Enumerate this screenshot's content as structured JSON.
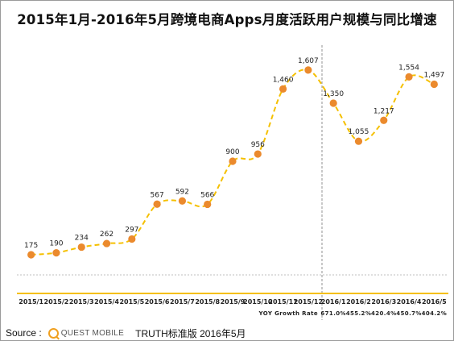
{
  "title": "2015年1月-2016年5月跨境电商Apps月度活跃用户规模与同比增速",
  "chart_data": {
    "type": "line",
    "title": "2015年1月-2016年5月跨境电商Apps月度活跃用户规模与同比增速",
    "categories": [
      "2015/1",
      "2015/2",
      "2015/3",
      "2015/4",
      "2015/5",
      "2015/6",
      "2015/7",
      "2015/8",
      "2015/9",
      "2015/10",
      "2015/11",
      "2015/12",
      "2016/1",
      "2016/2",
      "2016/3",
      "2016/4",
      "2016/5"
    ],
    "series": [
      {
        "values": [
          175,
          190,
          234,
          262,
          297,
          567,
          592,
          566,
          900,
          956,
          1460,
          1607,
          1350,
          1055,
          1217,
          1554,
          1497
        ],
        "labels": [
          "175",
          "190",
          "234",
          "262",
          "297",
          "567",
          "592",
          "566",
          "900",
          "956",
          "1,460",
          "1,607",
          "1,350",
          "1,055",
          "1,217",
          "1,554",
          "1,497"
        ]
      }
    ],
    "yoy": {
      "label": "YOY Growth Rate",
      "values": [
        "671.0%",
        "455.2%",
        "420.4%",
        "450.7%",
        "404.2%"
      ]
    },
    "line_color": "#f5c000",
    "marker_color": "#eb8a2d",
    "axis_color": "#f5c000",
    "grid": false,
    "legend": "none"
  },
  "source": {
    "label": "Source :",
    "logo_text": "QUEST MOBILE",
    "edition": "TRUTH标准版 2016年5月"
  },
  "icons": {
    "logo": "questmobile-logo-icon"
  }
}
